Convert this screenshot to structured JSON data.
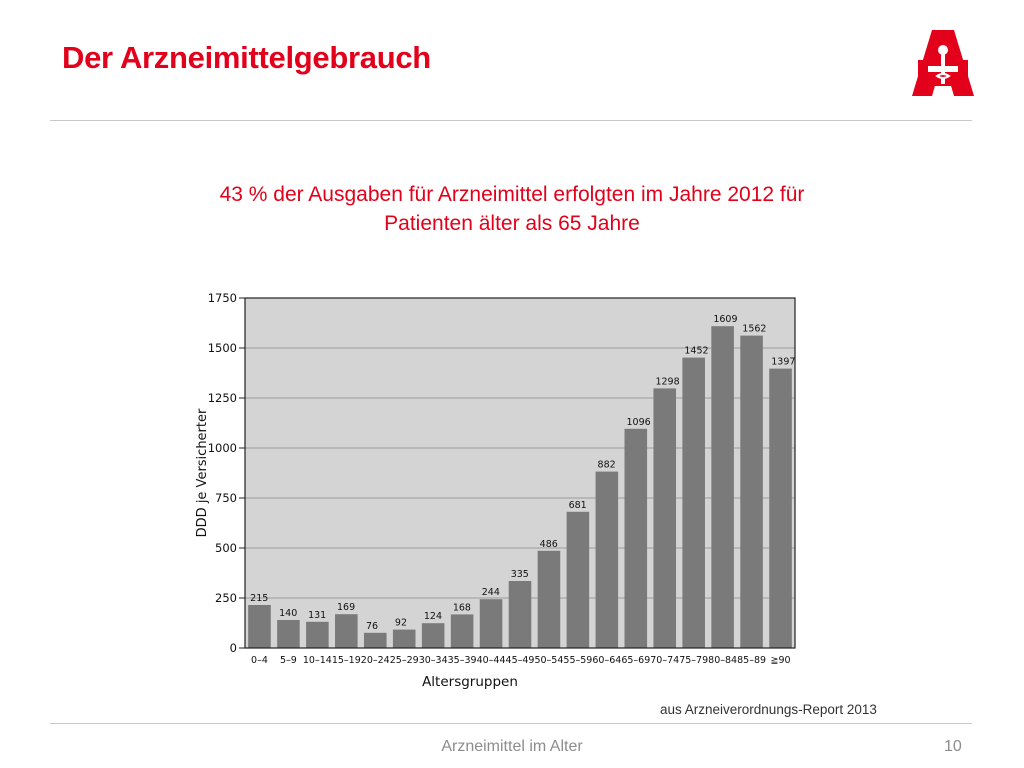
{
  "slide": {
    "title": "Der Arzneimittelgebrauch",
    "subtitle_line1": "43 % der Ausgaben für Arzneimittel erfolgten im Jahre 2012 für",
    "subtitle_line2": "Patienten älter als 65 Jahre",
    "source": "aus Arzneiverordnungs-Report 2013",
    "footer": "Arzneimittel im  Alter",
    "page_number": "10",
    "logo_icon": "apotheke-logo-icon"
  },
  "colors": {
    "accent": "#e2001a",
    "bar": "#7a7a7a",
    "plot_bg": "#d4d4d4"
  },
  "chart_data": {
    "type": "bar",
    "title": "",
    "xlabel": "Altersgruppen",
    "ylabel": "DDD je Versicherter",
    "ylim": [
      0,
      1750
    ],
    "yticks": [
      0,
      250,
      500,
      750,
      1000,
      1250,
      1500,
      1750
    ],
    "grid": true,
    "categories": [
      "0–4",
      "5–9",
      "10–14",
      "15–19",
      "20–24",
      "25–29",
      "30–34",
      "35–39",
      "40–44",
      "45–49",
      "50–54",
      "55–59",
      "60–64",
      "65–69",
      "70–74",
      "75–79",
      "80–84",
      "85–89",
      "≧90"
    ],
    "values": [
      215,
      140,
      131,
      169,
      76,
      92,
      124,
      168,
      244,
      335,
      486,
      681,
      882,
      1096,
      1298,
      1452,
      1609,
      1562,
      1397
    ]
  }
}
